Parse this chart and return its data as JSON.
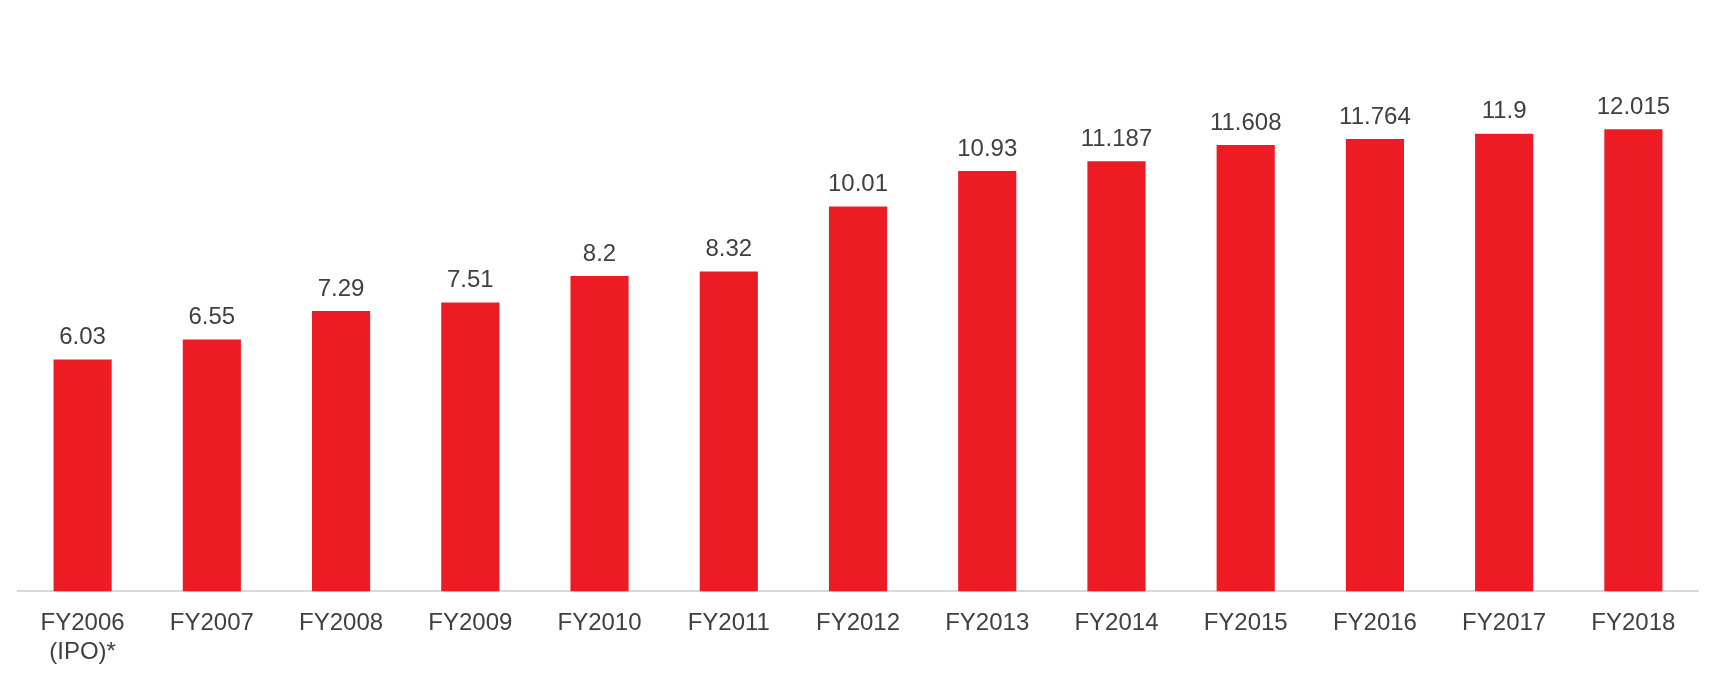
{
  "chart_data": {
    "type": "bar",
    "categories": [
      "FY2006\n(IPO)*",
      "FY2007",
      "FY2008",
      "FY2009",
      "FY2010",
      "FY2011",
      "FY2012",
      "FY2013",
      "FY2014",
      "FY2015",
      "FY2016",
      "FY2017",
      "FY2018"
    ],
    "values": [
      6.03,
      6.55,
      7.29,
      7.51,
      8.2,
      8.32,
      10.01,
      10.93,
      11.187,
      11.608,
      11.764,
      11.9,
      12.015
    ],
    "color": "#ed1c24",
    "data_labels": true,
    "grid": false,
    "legend": false,
    "tick_labels": "x"
  }
}
